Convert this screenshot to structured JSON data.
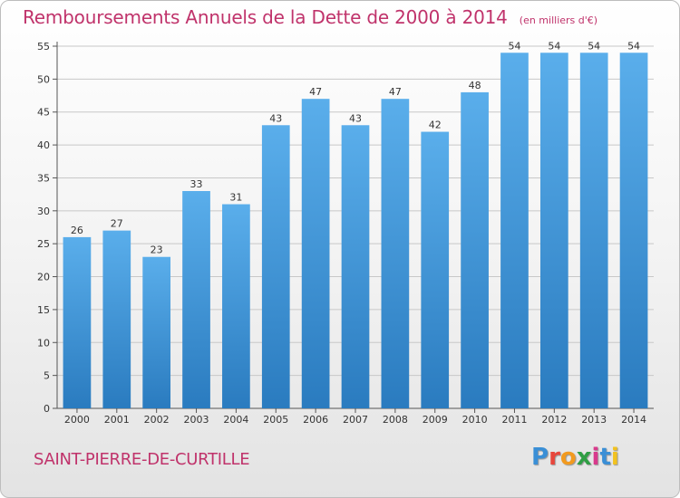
{
  "header": {
    "title": "Remboursements Annuels de la Dette de 2000 à 2014",
    "unit": "(en milliers d'€)"
  },
  "commune": "SAINT-PIERRE-DE-CURTILLE",
  "logo": {
    "text": "Proxiti",
    "letters": [
      "P",
      "r",
      "o",
      "x",
      "i",
      "t",
      "i"
    ],
    "colors": [
      "#3a8fd6",
      "#e8463c",
      "#f29a1f",
      "#2f9e44",
      "#d83a8c",
      "#3a8fd6",
      "#f2c21f"
    ]
  },
  "colors": {
    "bar_top": "#5aaeeb",
    "bar_bottom": "#2a7bbf",
    "grid": "#c8c8c8",
    "axis": "#555555"
  },
  "chart_data": {
    "type": "bar",
    "title": "Remboursements Annuels de la Dette de 2000 à 2014",
    "xlabel": "",
    "ylabel": "",
    "categories": [
      "2000",
      "2001",
      "2002",
      "2003",
      "2004",
      "2005",
      "2006",
      "2007",
      "2008",
      "2009",
      "2010",
      "2011",
      "2012",
      "2013",
      "2014"
    ],
    "values": [
      26,
      27,
      23,
      33,
      31,
      43,
      47,
      43,
      47,
      42,
      48,
      54,
      54,
      54,
      54
    ],
    "ylim": [
      0,
      55
    ],
    "yticks": [
      0,
      5,
      10,
      15,
      20,
      25,
      30,
      35,
      40,
      45,
      50,
      55
    ],
    "grid": true
  }
}
